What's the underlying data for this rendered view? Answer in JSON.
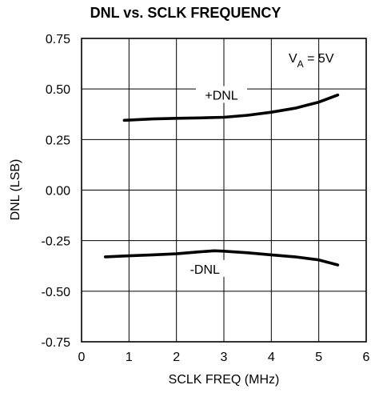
{
  "chart_data": {
    "type": "line",
    "title": "DNL vs. SCLK FREQUENCY",
    "xlabel": "SCLK FREQ (MHz)",
    "ylabel": "DNL (LSB)",
    "xlim": [
      0,
      6
    ],
    "ylim": [
      -0.75,
      0.75
    ],
    "xticks": [
      "0",
      "1",
      "2",
      "3",
      "4",
      "5",
      "6"
    ],
    "yticks": [
      "0.75",
      "0.50",
      "0.25",
      "0.00",
      "-0.25",
      "-0.50",
      "-0.75"
    ],
    "grid": true,
    "annotation": {
      "prefix": "V",
      "subscript": "A",
      "suffix": " = 5V"
    },
    "series": [
      {
        "name": "+DNL",
        "x": [
          0.9,
          1.5,
          2.0,
          2.5,
          3.0,
          3.5,
          4.0,
          4.5,
          5.0,
          5.4
        ],
        "y": [
          0.345,
          0.352,
          0.355,
          0.357,
          0.36,
          0.37,
          0.385,
          0.405,
          0.435,
          0.47
        ]
      },
      {
        "name": "-DNL",
        "x": [
          0.5,
          1.0,
          1.5,
          2.0,
          2.5,
          2.8,
          3.0,
          3.5,
          4.0,
          4.5,
          5.0,
          5.4
        ],
        "y": [
          -0.33,
          -0.325,
          -0.32,
          -0.315,
          -0.305,
          -0.3,
          -0.302,
          -0.31,
          -0.32,
          -0.33,
          -0.345,
          -0.37
        ]
      }
    ]
  }
}
